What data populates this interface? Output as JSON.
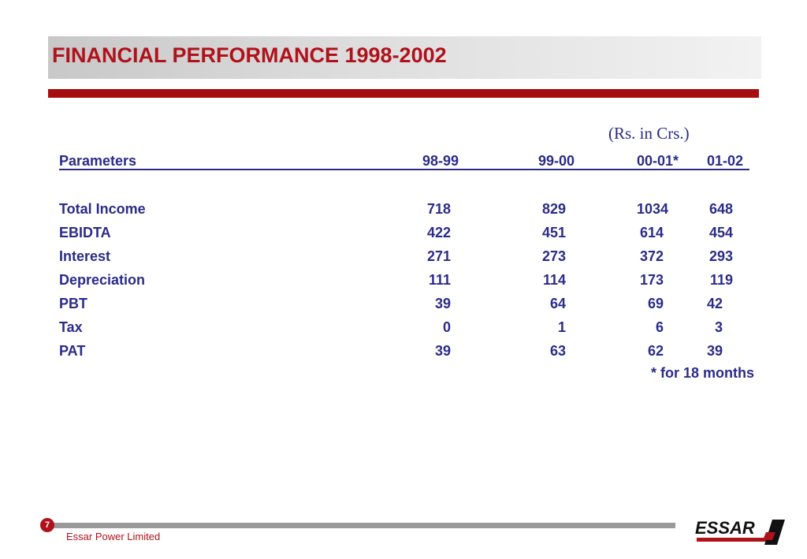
{
  "slide": {
    "title": "FINANCIAL PERFORMANCE 1998-2002",
    "unit_note": "(Rs. in Crs.)",
    "footnote": "* for 18 months",
    "page_number": "7",
    "company": "Essar Power Limited",
    "logo_text": "ESSAR",
    "colors": {
      "title": "#b0121b",
      "rule": "#a50e10",
      "table_text": "#2b2b8a"
    }
  },
  "table": {
    "headers": {
      "label": "Parameters",
      "c1": "98-99",
      "c2": "99-00",
      "c3": "00-01*",
      "c4": "01-02"
    },
    "rows": [
      {
        "label": "Total Income",
        "c1": "718",
        "c2": "829",
        "c3": "1034",
        "c4": "648"
      },
      {
        "label": "EBIDTA",
        "c1": "422",
        "c2": "451",
        "c3": "614",
        "c4": "454"
      },
      {
        "label": "Interest",
        "c1": "271",
        "c2": "273",
        "c3": "372",
        "c4": "293"
      },
      {
        "label": "Depreciation",
        "c1": "111",
        "c2": "114",
        "c3": "173",
        "c4": "119"
      },
      {
        "label": "PBT",
        "c1": "39",
        "c2": "64",
        "c3": "69",
        "c4": "42"
      },
      {
        "label": "Tax",
        "c1": "0",
        "c2": "1",
        "c3": "6",
        "c4": "3"
      },
      {
        "label": "PAT",
        "c1": "39",
        "c2": "63",
        "c3": "62",
        "c4": "39"
      }
    ]
  }
}
